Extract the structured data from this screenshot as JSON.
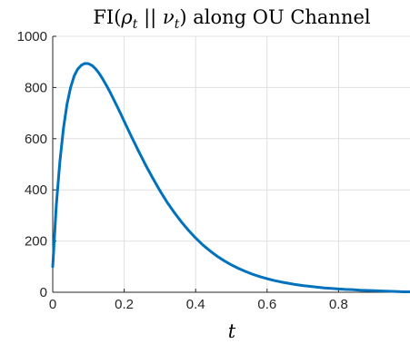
{
  "chart_data": {
    "type": "line",
    "title": {
      "prefix": "FI(",
      "rho": "ρ",
      "rho_sub": "t",
      "separator": " || ",
      "nu": "ν",
      "nu_sub": "t",
      "suffix": ") along OU Channel"
    },
    "xlabel": "t",
    "ylabel": "",
    "xlim": [
      0,
      1
    ],
    "ylim": [
      0,
      1000
    ],
    "x_ticks": [
      0,
      0.2,
      0.4,
      0.6,
      0.8
    ],
    "x_tick_labels": [
      "0",
      "0.2",
      "0.4",
      "0.6",
      "0.8"
    ],
    "y_ticks": [
      0,
      200,
      400,
      600,
      800,
      1000
    ],
    "y_tick_labels": [
      "0",
      "200",
      "400",
      "600",
      "800",
      "1000"
    ],
    "grid": true,
    "line_color": "#0072BD",
    "series": [
      {
        "x": [
          0,
          0.01,
          0.02,
          0.03,
          0.04,
          0.05,
          0.06,
          0.07,
          0.08,
          0.09,
          0.1,
          0.11,
          0.12,
          0.13,
          0.14,
          0.15,
          0.16,
          0.17,
          0.18,
          0.19,
          0.2,
          0.22,
          0.24,
          0.26,
          0.28,
          0.3,
          0.32,
          0.34,
          0.36,
          0.38,
          0.4,
          0.42,
          0.44,
          0.46,
          0.48,
          0.5,
          0.52,
          0.54,
          0.56,
          0.58,
          0.6,
          0.62,
          0.64,
          0.66,
          0.68,
          0.7,
          0.72,
          0.74,
          0.76,
          0.78,
          0.8,
          0.82,
          0.84,
          0.86,
          0.88,
          0.9,
          0.92,
          0.94,
          0.96,
          0.98,
          1.0
        ],
        "y": [
          100,
          340,
          510,
          640,
          735,
          800,
          845,
          872,
          887,
          894,
          893,
          886,
          873,
          855,
          833,
          809,
          783,
          755,
          727,
          698,
          668,
          609,
          552,
          497,
          446,
          397,
          352,
          312,
          275,
          242,
          212,
          185,
          162,
          141,
          123,
          107,
          93,
          81,
          70,
          61,
          53,
          46,
          40,
          35,
          30,
          26,
          23,
          20,
          17,
          15,
          13,
          11,
          10,
          8,
          7,
          6,
          5,
          4,
          3,
          2,
          2
        ]
      }
    ]
  }
}
